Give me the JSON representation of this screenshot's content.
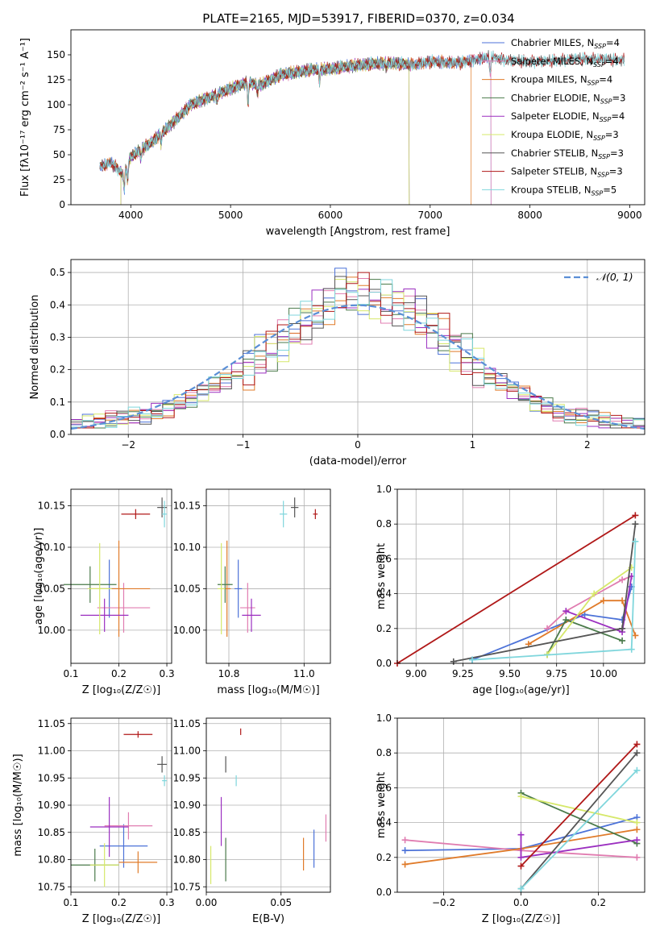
{
  "figure_title": "PLATE=2165, MJD=53917, FIBERID=0370, z=0.034",
  "colors": {
    "Chabrier MILES": "#4c72d8",
    "Salpeter MILES": "#e07cb0",
    "Kroupa MILES": "#e07b2a",
    "Chabrier ELODIE": "#4a7a4a",
    "Salpeter ELODIE": "#9b2fc0",
    "Kroupa ELODIE": "#d6e86a",
    "Chabrier STELIB": "#555555",
    "Salpeter STELIB": "#b01818",
    "Kroupa STELIB": "#7fd6dc",
    "normal": "#5b8fd6"
  },
  "chart_data": [
    {
      "type": "line",
      "title": "PLATE=2165, MJD=53917, FIBERID=0370, z=0.034",
      "xlabel": "wavelength [Angstrom, rest frame]",
      "ylabel": "Flux [fλ10⁻¹⁷ erg cm⁻² s⁻¹ A⁻¹]",
      "xlim": [
        3400,
        9150
      ],
      "ylim": [
        0,
        175
      ],
      "xticks": [
        "4000",
        "5000",
        "6000",
        "7000",
        "8000",
        "9000"
      ],
      "yticks": [
        "0",
        "25",
        "50",
        "75",
        "100",
        "125",
        "150"
      ],
      "grid": false,
      "legend_position": "top-right",
      "series": [
        {
          "name": "Chabrier MILES",
          "sub": "SSP",
          "n": "=4",
          "x_range": [
            3690,
            7610
          ]
        },
        {
          "name": "Salpeter MILES",
          "sub": "SSP",
          "n": "=4",
          "x_range": [
            3690,
            7610
          ]
        },
        {
          "name": "Kroupa MILES",
          "sub": "SSP",
          "n": "=4",
          "x_range": [
            3690,
            7410
          ]
        },
        {
          "name": "Chabrier ELODIE",
          "sub": "SSP",
          "n": "=3",
          "x_range": [
            3900,
            6790
          ]
        },
        {
          "name": "Salpeter ELODIE",
          "sub": "SSP",
          "n": "=4",
          "x_range": [
            3900,
            6790
          ]
        },
        {
          "name": "Kroupa ELODIE",
          "sub": "SSP",
          "n": "=3",
          "x_range": [
            3900,
            6790
          ]
        },
        {
          "name": "Chabrier STELIB",
          "sub": "SSP",
          "n": "=3",
          "x_range": [
            3690,
            8950
          ]
        },
        {
          "name": "Salpeter STELIB",
          "sub": "SSP",
          "n": "=3",
          "x_range": [
            3690,
            8950
          ]
        },
        {
          "name": "Kroupa STELIB",
          "sub": "SSP",
          "n": "=5",
          "x_range": [
            3690,
            8950
          ]
        }
      ],
      "spectrum_anchors": {
        "x": [
          3690,
          3800,
          3930,
          4000,
          4200,
          4400,
          4600,
          4900,
          5150,
          5300,
          5500,
          5800,
          6000,
          6300,
          6600,
          6800,
          7000,
          7300,
          7600,
          7800,
          8100,
          8500,
          8900
        ],
        "y": [
          38,
          42,
          30,
          48,
          62,
          80,
          100,
          112,
          122,
          120,
          130,
          135,
          136,
          140,
          142,
          140,
          143,
          142,
          148,
          144,
          143,
          146,
          145
        ]
      }
    },
    {
      "type": "histogram",
      "xlabel": "(data-model)/error",
      "ylabel": "Normed distribution",
      "xlim": [
        -2.5,
        2.5
      ],
      "ylim": [
        0,
        0.54
      ],
      "xticks": [
        "−2",
        "−1",
        "0",
        "1",
        "2"
      ],
      "yticks": [
        "0.0",
        "0.1",
        "0.2",
        "0.3",
        "0.4",
        "0.5"
      ],
      "grid": true,
      "legend_position": "top-right",
      "bin_width": 0.1,
      "bin_start": -2.5,
      "reference_curve": {
        "label": "𝒩(0, 1)",
        "mean": 0,
        "sigma": 1
      },
      "histogram_envelope": [
        0.03,
        0.035,
        0.04,
        0.045,
        0.05,
        0.055,
        0.06,
        0.07,
        0.08,
        0.095,
        0.11,
        0.13,
        0.15,
        0.17,
        0.19,
        0.21,
        0.24,
        0.26,
        0.29,
        0.32,
        0.35,
        0.38,
        0.41,
        0.44,
        0.43,
        0.43,
        0.42,
        0.41,
        0.4,
        0.39,
        0.36,
        0.33,
        0.3,
        0.27,
        0.24,
        0.21,
        0.18,
        0.16,
        0.14,
        0.12,
        0.1,
        0.085,
        0.07,
        0.06,
        0.055,
        0.05,
        0.04,
        0.035,
        0.03,
        0.03
      ]
    },
    {
      "type": "scatter",
      "xlabel": "Z [log₁₀(Z/Z☉)]",
      "ylabel": "age [log₁₀(age/yr)]",
      "xlim": [
        0.1,
        0.31
      ],
      "ylim": [
        9.96,
        10.17
      ],
      "xticks": [
        "0.1",
        "0.2",
        "0.3"
      ],
      "yticks": [
        "10.00",
        "10.05",
        "10.10",
        "10.15"
      ],
      "grid": true,
      "points": [
        {
          "model": "Chabrier MILES",
          "x": 0.18,
          "y": 10.05,
          "xerr": 0.02,
          "yerr": 0.035
        },
        {
          "model": "Salpeter MILES",
          "x": 0.21,
          "y": 10.027,
          "xerr": 0.055,
          "yerr": 0.03
        },
        {
          "model": "Kroupa MILES",
          "x": 0.2,
          "y": 10.05,
          "xerr": 0.065,
          "yerr": 0.058
        },
        {
          "model": "Chabrier ELODIE",
          "x": 0.14,
          "y": 10.055,
          "xerr": 0.055,
          "yerr": 0.022
        },
        {
          "model": "Salpeter ELODIE",
          "x": 0.17,
          "y": 10.018,
          "xerr": 0.05,
          "yerr": 0.02
        },
        {
          "model": "Kroupa ELODIE",
          "x": 0.16,
          "y": 10.05,
          "xerr": 0.025,
          "yerr": 0.055
        },
        {
          "model": "Chabrier STELIB",
          "x": 0.29,
          "y": 10.148,
          "xerr": 0.01,
          "yerr": 0.012
        },
        {
          "model": "Salpeter STELIB",
          "x": 0.235,
          "y": 10.14,
          "xerr": 0.03,
          "yerr": 0.006
        },
        {
          "model": "Kroupa STELIB",
          "x": 0.295,
          "y": 10.14,
          "xerr": 0.005,
          "yerr": 0.016
        }
      ]
    },
    {
      "type": "scatter",
      "xlabel": "mass [log₁₀(M/M☉)]",
      "ylabel": "",
      "xlim": [
        10.74,
        11.07
      ],
      "ylim": [
        9.96,
        10.17
      ],
      "xticks": [
        "10.8",
        "11.0"
      ],
      "yticks": [
        "10.00",
        "10.05",
        "10.10",
        "10.15"
      ],
      "grid": true,
      "points": [
        {
          "model": "Chabrier MILES",
          "x": 10.825,
          "y": 10.05,
          "xerr": 0.01,
          "yerr": 0.035
        },
        {
          "model": "Salpeter MILES",
          "x": 10.85,
          "y": 10.027,
          "xerr": 0.02,
          "yerr": 0.03
        },
        {
          "model": "Kroupa MILES",
          "x": 10.795,
          "y": 10.05,
          "xerr": 0.01,
          "yerr": 0.058
        },
        {
          "model": "Chabrier ELODIE",
          "x": 10.79,
          "y": 10.055,
          "xerr": 0.02,
          "yerr": 0.022
        },
        {
          "model": "Salpeter ELODIE",
          "x": 10.86,
          "y": 10.018,
          "xerr": 0.025,
          "yerr": 0.02
        },
        {
          "model": "Kroupa ELODIE",
          "x": 10.78,
          "y": 10.05,
          "xerr": 0.01,
          "yerr": 0.055
        },
        {
          "model": "Chabrier STELIB",
          "x": 10.975,
          "y": 10.148,
          "xerr": 0.01,
          "yerr": 0.012
        },
        {
          "model": "Salpeter STELIB",
          "x": 11.03,
          "y": 10.14,
          "xerr": 0.006,
          "yerr": 0.006
        },
        {
          "model": "Kroupa STELIB",
          "x": 10.945,
          "y": 10.14,
          "xerr": 0.01,
          "yerr": 0.016
        }
      ]
    },
    {
      "type": "line",
      "xlabel": "age [log₁₀(age/yr)]",
      "ylabel": "mass weight",
      "xlim": [
        8.9,
        10.22
      ],
      "ylim": [
        0,
        1.0
      ],
      "xticks": [
        "9.00",
        "9.25",
        "9.50",
        "9.75",
        "10.00"
      ],
      "yticks": [
        "0.0",
        "0.2",
        "0.4",
        "0.6",
        "0.8",
        "1.0"
      ],
      "grid": true,
      "series": [
        {
          "model": "Chabrier MILES",
          "x": [
            9.3,
            9.9,
            10.1,
            10.15
          ],
          "y": [
            0.02,
            0.28,
            0.25,
            0.44
          ]
        },
        {
          "model": "Salpeter MILES",
          "x": [
            9.7,
            9.8,
            10.1,
            10.15
          ],
          "y": [
            0.2,
            0.3,
            0.48,
            0.5
          ]
        },
        {
          "model": "Kroupa MILES",
          "x": [
            9.6,
            10.0,
            10.1,
            10.17
          ],
          "y": [
            0.11,
            0.36,
            0.36,
            0.16
          ]
        },
        {
          "model": "Chabrier ELODIE",
          "x": [
            9.7,
            9.8,
            10.1
          ],
          "y": [
            0.05,
            0.25,
            0.13
          ]
        },
        {
          "model": "Salpeter ELODIE",
          "x": [
            9.8,
            10.1,
            10.15
          ],
          "y": [
            0.3,
            0.18,
            0.5
          ]
        },
        {
          "model": "Kroupa ELODIE",
          "x": [
            9.7,
            9.95,
            10.15
          ],
          "y": [
            0.05,
            0.4,
            0.55
          ]
        },
        {
          "model": "Chabrier STELIB",
          "x": [
            9.2,
            10.1,
            10.17
          ],
          "y": [
            0.01,
            0.2,
            0.8
          ]
        },
        {
          "model": "Salpeter STELIB",
          "x": [
            8.9,
            10.17
          ],
          "y": [
            0.0,
            0.85
          ]
        },
        {
          "model": "Kroupa STELIB",
          "x": [
            9.3,
            10.15,
            10.17
          ],
          "y": [
            0.02,
            0.08,
            0.7
          ]
        }
      ]
    },
    {
      "type": "scatter",
      "xlabel": "Z [log₁₀(Z/Z☉)]",
      "ylabel": "mass [log₁₀(M/M☉)]",
      "xlim": [
        0.1,
        0.31
      ],
      "ylim": [
        10.74,
        11.06
      ],
      "xticks": [
        "0.1",
        "0.2",
        "0.3"
      ],
      "yticks": [
        "10.75",
        "10.80",
        "10.85",
        "10.90",
        "10.95",
        "11.00",
        "11.05"
      ],
      "grid": true,
      "points": [
        {
          "model": "Chabrier MILES",
          "x": 0.21,
          "y": 10.825,
          "xerr": 0.05,
          "yerr": 0.04
        },
        {
          "model": "Salpeter MILES",
          "x": 0.22,
          "y": 10.862,
          "xerr": 0.05,
          "yerr": 0.025
        },
        {
          "model": "Kroupa MILES",
          "x": 0.24,
          "y": 10.795,
          "xerr": 0.04,
          "yerr": 0.02
        },
        {
          "model": "Chabrier ELODIE",
          "x": 0.15,
          "y": 10.79,
          "xerr": 0.05,
          "yerr": 0.03
        },
        {
          "model": "Salpeter ELODIE",
          "x": 0.18,
          "y": 10.86,
          "xerr": 0.04,
          "yerr": 0.055
        },
        {
          "model": "Kroupa ELODIE",
          "x": 0.17,
          "y": 10.79,
          "xerr": 0.03,
          "yerr": 0.04
        },
        {
          "model": "Chabrier STELIB",
          "x": 0.29,
          "y": 10.975,
          "xerr": 0.01,
          "yerr": 0.015
        },
        {
          "model": "Salpeter STELIB",
          "x": 0.24,
          "y": 11.03,
          "xerr": 0.03,
          "yerr": 0.006
        },
        {
          "model": "Kroupa STELIB",
          "x": 0.295,
          "y": 10.945,
          "xerr": 0.005,
          "yerr": 0.01
        }
      ]
    },
    {
      "type": "scatter",
      "xlabel": "E(B-V)",
      "ylabel": "",
      "xlim": [
        0.0,
        0.083
      ],
      "ylim": [
        10.74,
        11.06
      ],
      "xticks": [
        "0.00",
        "0.05"
      ],
      "yticks": [
        "10.75",
        "10.80",
        "10.85",
        "10.90",
        "10.95",
        "11.00",
        "11.05"
      ],
      "grid": true,
      "points": [
        {
          "model": "Chabrier MILES",
          "x": 0.072,
          "y": 10.82,
          "yerr": 0.035
        },
        {
          "model": "Salpeter MILES",
          "x": 0.08,
          "y": 10.858,
          "yerr": 0.025
        },
        {
          "model": "Kroupa MILES",
          "x": 0.065,
          "y": 10.81,
          "yerr": 0.03
        },
        {
          "model": "Chabrier ELODIE",
          "x": 0.013,
          "y": 10.8,
          "yerr": 0.04
        },
        {
          "model": "Salpeter ELODIE",
          "x": 0.01,
          "y": 10.87,
          "yerr": 0.045
        },
        {
          "model": "Kroupa ELODIE",
          "x": 0.003,
          "y": 10.79,
          "yerr": 0.035
        },
        {
          "model": "Chabrier STELIB",
          "x": 0.013,
          "y": 10.975,
          "yerr": 0.015
        },
        {
          "model": "Salpeter STELIB",
          "x": 0.023,
          "y": 11.035,
          "yerr": 0.006
        },
        {
          "model": "Kroupa STELIB",
          "x": 0.02,
          "y": 10.945,
          "yerr": 0.01
        }
      ]
    },
    {
      "type": "line",
      "xlabel": "Z [log₁₀(Z/Z☉)]",
      "ylabel": "mass weight",
      "xlim": [
        -0.32,
        0.32
      ],
      "ylim": [
        0,
        1.0
      ],
      "xticks": [
        "−0.2",
        "0.0",
        "0.2"
      ],
      "yticks": [
        "0.0",
        "0.2",
        "0.4",
        "0.6",
        "0.8",
        "1.0"
      ],
      "grid": true,
      "series": [
        {
          "model": "Chabrier MILES",
          "x": [
            -0.3,
            0.0,
            0.3
          ],
          "y": [
            0.24,
            0.25,
            0.43
          ]
        },
        {
          "model": "Salpeter MILES",
          "x": [
            -0.3,
            0.0,
            0.3
          ],
          "y": [
            0.3,
            0.24,
            0.2
          ]
        },
        {
          "model": "Kroupa MILES",
          "x": [
            -0.3,
            0.0,
            0.3
          ],
          "y": [
            0.16,
            0.25,
            0.36
          ]
        },
        {
          "model": "Chabrier ELODIE",
          "x": [
            0.0,
            0.3
          ],
          "y": [
            0.57,
            0.28
          ]
        },
        {
          "model": "Salpeter ELODIE",
          "x": [
            0.0,
            0.0,
            0.3
          ],
          "y": [
            0.33,
            0.2,
            0.3
          ]
        },
        {
          "model": "Kroupa ELODIE",
          "x": [
            0.0,
            0.3
          ],
          "y": [
            0.55,
            0.4
          ]
        },
        {
          "model": "Chabrier STELIB",
          "x": [
            0.0,
            0.3
          ],
          "y": [
            0.02,
            0.8
          ]
        },
        {
          "model": "Salpeter STELIB",
          "x": [
            0.0,
            0.3
          ],
          "y": [
            0.15,
            0.85
          ]
        },
        {
          "model": "Kroupa STELIB",
          "x": [
            0.0,
            0.3
          ],
          "y": [
            0.02,
            0.7
          ]
        }
      ]
    }
  ]
}
